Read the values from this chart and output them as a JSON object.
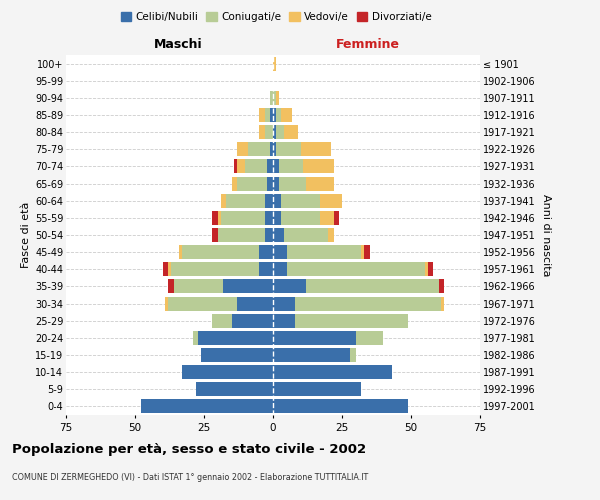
{
  "age_groups": [
    "0-4",
    "5-9",
    "10-14",
    "15-19",
    "20-24",
    "25-29",
    "30-34",
    "35-39",
    "40-44",
    "45-49",
    "50-54",
    "55-59",
    "60-64",
    "65-69",
    "70-74",
    "75-79",
    "80-84",
    "85-89",
    "90-94",
    "95-99",
    "100+"
  ],
  "birth_years": [
    "1997-2001",
    "1992-1996",
    "1987-1991",
    "1982-1986",
    "1977-1981",
    "1972-1976",
    "1967-1971",
    "1962-1966",
    "1957-1961",
    "1952-1956",
    "1947-1951",
    "1942-1946",
    "1937-1941",
    "1932-1936",
    "1927-1931",
    "1922-1926",
    "1917-1921",
    "1912-1916",
    "1907-1911",
    "1902-1906",
    "≤ 1901"
  ],
  "male": {
    "celibi": [
      48,
      28,
      33,
      26,
      27,
      15,
      13,
      18,
      5,
      5,
      3,
      3,
      3,
      2,
      2,
      1,
      0,
      1,
      0,
      0,
      0
    ],
    "coniugati": [
      0,
      0,
      0,
      0,
      2,
      7,
      25,
      18,
      32,
      28,
      17,
      16,
      14,
      11,
      8,
      8,
      3,
      2,
      1,
      0,
      0
    ],
    "vedovi": [
      0,
      0,
      0,
      0,
      0,
      0,
      1,
      0,
      1,
      1,
      0,
      1,
      2,
      2,
      3,
      4,
      2,
      2,
      0,
      0,
      0
    ],
    "divorziati": [
      0,
      0,
      0,
      0,
      0,
      0,
      0,
      2,
      2,
      0,
      2,
      2,
      0,
      0,
      1,
      0,
      0,
      0,
      0,
      0,
      0
    ]
  },
  "female": {
    "nubili": [
      49,
      32,
      43,
      28,
      30,
      8,
      8,
      12,
      5,
      5,
      4,
      3,
      3,
      2,
      2,
      1,
      1,
      1,
      0,
      0,
      0
    ],
    "coniugate": [
      0,
      0,
      0,
      2,
      10,
      41,
      53,
      48,
      50,
      27,
      16,
      14,
      14,
      10,
      9,
      9,
      3,
      2,
      1,
      0,
      0
    ],
    "vedove": [
      0,
      0,
      0,
      0,
      0,
      0,
      1,
      0,
      1,
      1,
      2,
      5,
      8,
      10,
      11,
      11,
      5,
      4,
      1,
      0,
      1
    ],
    "divorziate": [
      0,
      0,
      0,
      0,
      0,
      0,
      0,
      2,
      2,
      2,
      0,
      2,
      0,
      0,
      0,
      0,
      0,
      0,
      0,
      0,
      0
    ]
  },
  "colors": {
    "celibi": "#3a6faa",
    "coniugati": "#b8cc96",
    "vedovi": "#f2c060",
    "divorziati": "#c42428"
  },
  "legend_labels": [
    "Celibi/Nubili",
    "Coniugati/e",
    "Vedovi/e",
    "Divorziati/e"
  ],
  "title": "Popolazione per età, sesso e stato civile - 2002",
  "subtitle": "COMUNE DI ZERMEGHEDO (VI) - Dati ISTAT 1° gennaio 2002 - Elaborazione TUTTITALIA.IT",
  "xlabel_left": "Maschi",
  "xlabel_right": "Femmine",
  "ylabel_left": "Fasce di età",
  "ylabel_right": "Anni di nascita",
  "xlim": 75,
  "bg_color": "#f4f4f4",
  "plot_bg": "#ffffff",
  "grid_color": "#cccccc"
}
